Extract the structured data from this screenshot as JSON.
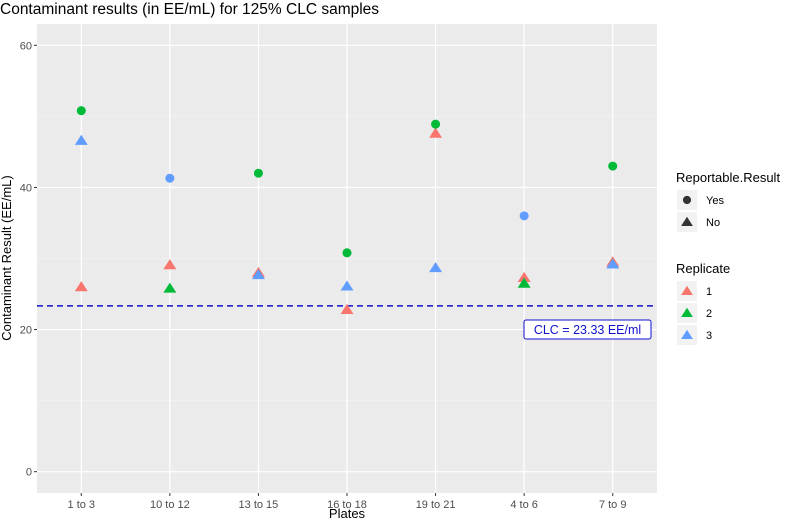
{
  "chart_data": {
    "type": "scatter",
    "title": "Contaminant results (in EE/mL) for 125% CLC samples",
    "xlabel": "Plates",
    "ylabel": "Contaminant Result (EE/mL)",
    "categories": [
      "1 to 3",
      "10 to 12",
      "13 to 15",
      "16 to 18",
      "19 to 21",
      "4 to 6",
      "7 to 9"
    ],
    "ylim": [
      -3,
      63
    ],
    "yticks": [
      0,
      20,
      40,
      60
    ],
    "grid": true,
    "background": "#EBEBEB",
    "reference_line": {
      "y": 23.33,
      "label": "CLC = 23.33 EE/ml",
      "color": "#1111CC",
      "style": "dashed"
    },
    "shape_legend": {
      "title": "Reportable.Result",
      "entries": [
        {
          "label": "Yes",
          "shape": "circle"
        },
        {
          "label": "No",
          "shape": "triangle"
        }
      ]
    },
    "color_legend": {
      "title": "Replicate",
      "entries": [
        {
          "label": "1",
          "color": "#F8766D"
        },
        {
          "label": "2",
          "color": "#00BA38"
        },
        {
          "label": "3",
          "color": "#619CFF"
        }
      ]
    },
    "points": [
      {
        "x": "1 to 3",
        "y": 26.0,
        "replicate": "1",
        "reportable": "No"
      },
      {
        "x": "1 to 3",
        "y": 50.8,
        "replicate": "2",
        "reportable": "Yes"
      },
      {
        "x": "1 to 3",
        "y": 46.6,
        "replicate": "3",
        "reportable": "No"
      },
      {
        "x": "10 to 12",
        "y": 29.1,
        "replicate": "1",
        "reportable": "No"
      },
      {
        "x": "10 to 12",
        "y": 25.8,
        "replicate": "2",
        "reportable": "No"
      },
      {
        "x": "10 to 12",
        "y": 41.3,
        "replicate": "3",
        "reportable": "Yes"
      },
      {
        "x": "13 to 15",
        "y": 28.0,
        "replicate": "1",
        "reportable": "No"
      },
      {
        "x": "13 to 15",
        "y": 42.0,
        "replicate": "2",
        "reportable": "Yes"
      },
      {
        "x": "13 to 15",
        "y": 27.7,
        "replicate": "3",
        "reportable": "No"
      },
      {
        "x": "16 to 18",
        "y": 22.8,
        "replicate": "1",
        "reportable": "No"
      },
      {
        "x": "16 to 18",
        "y": 30.8,
        "replicate": "2",
        "reportable": "Yes"
      },
      {
        "x": "16 to 18",
        "y": 26.1,
        "replicate": "3",
        "reportable": "No"
      },
      {
        "x": "19 to 21",
        "y": 47.6,
        "replicate": "1",
        "reportable": "No"
      },
      {
        "x": "19 to 21",
        "y": 48.9,
        "replicate": "2",
        "reportable": "Yes"
      },
      {
        "x": "19 to 21",
        "y": 28.7,
        "replicate": "3",
        "reportable": "No"
      },
      {
        "x": "4 to 6",
        "y": 27.3,
        "replicate": "1",
        "reportable": "No"
      },
      {
        "x": "4 to 6",
        "y": 26.5,
        "replicate": "2",
        "reportable": "No"
      },
      {
        "x": "4 to 6",
        "y": 36.0,
        "replicate": "3",
        "reportable": "Yes"
      },
      {
        "x": "7 to 9",
        "y": 29.5,
        "replicate": "1",
        "reportable": "No"
      },
      {
        "x": "7 to 9",
        "y": 43.0,
        "replicate": "2",
        "reportable": "Yes"
      },
      {
        "x": "7 to 9",
        "y": 29.2,
        "replicate": "3",
        "reportable": "No"
      }
    ]
  }
}
